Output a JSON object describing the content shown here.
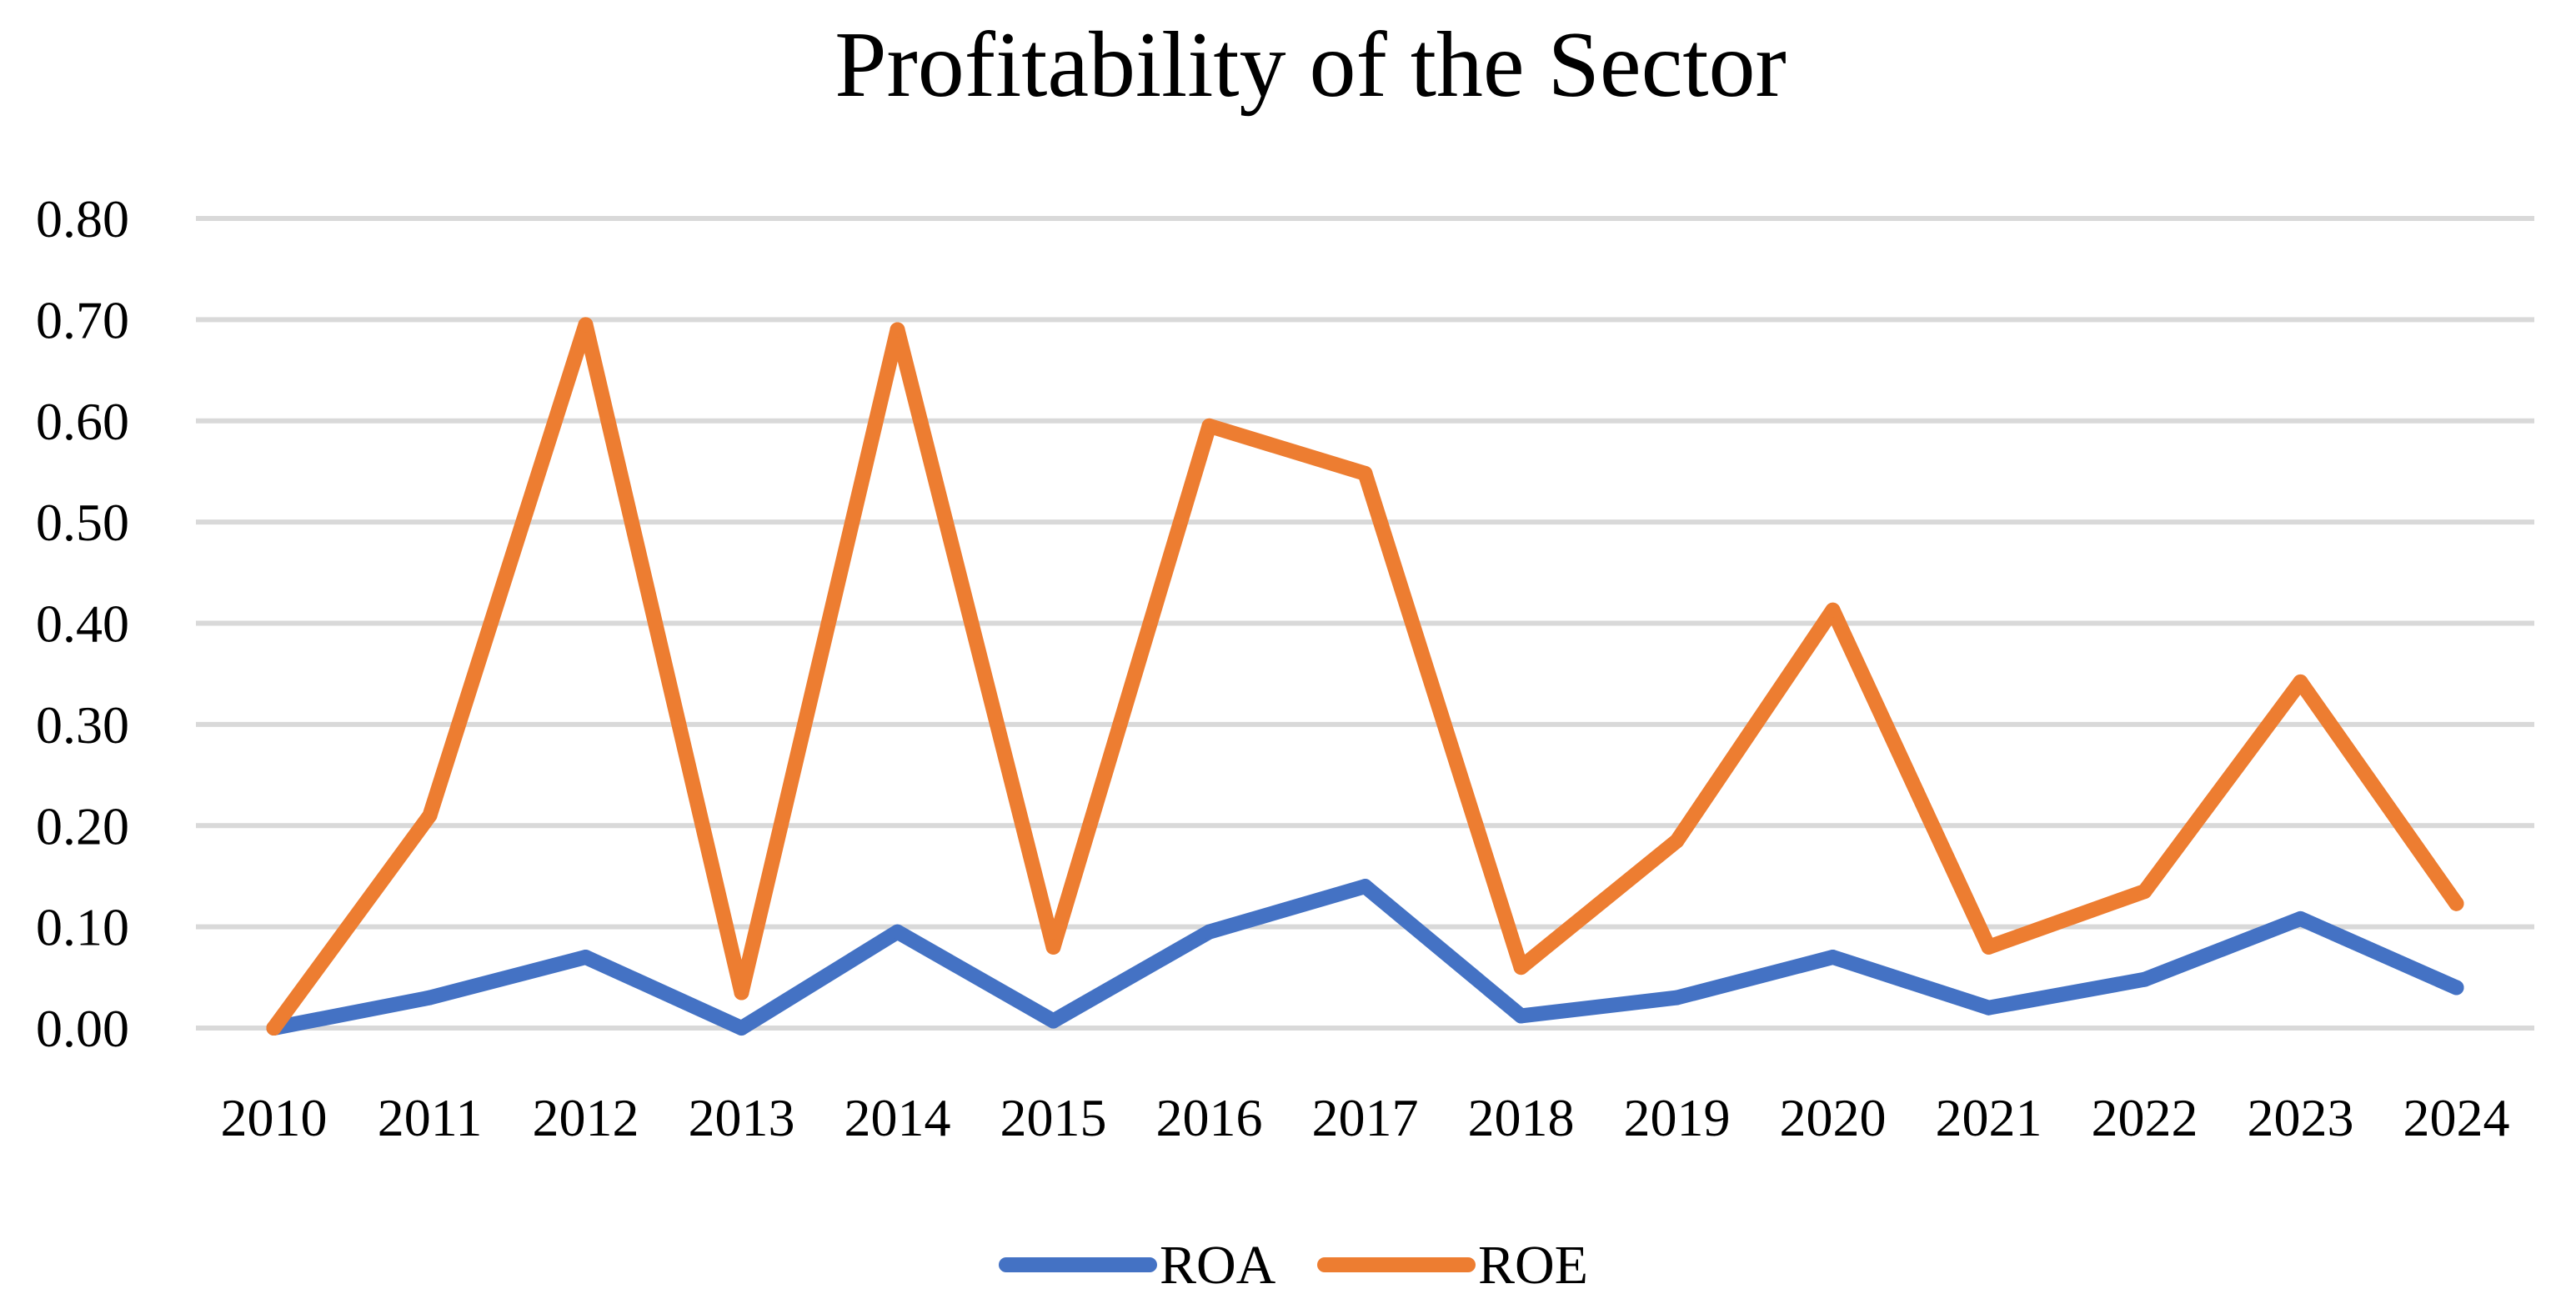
{
  "chart_data": {
    "type": "line",
    "title": "Profitability of the Sector",
    "xlabel": "",
    "ylabel": "",
    "categories": [
      "2010",
      "2011",
      "2012",
      "2013",
      "2014",
      "2015",
      "2016",
      "2017",
      "2018",
      "2019",
      "2020",
      "2021",
      "2022",
      "2023",
      "2024"
    ],
    "yticks": [
      "0.00",
      "0.10",
      "0.20",
      "0.30",
      "0.40",
      "0.50",
      "0.60",
      "0.70",
      "0.80"
    ],
    "ylim": [
      0,
      0.8
    ],
    "grid": true,
    "legend_position": "bottom",
    "series": [
      {
        "name": "ROA",
        "color": "#4472c4",
        "values": [
          0.0,
          0.03,
          0.07,
          0.0,
          0.095,
          0.007,
          0.095,
          0.14,
          0.012,
          0.03,
          0.07,
          0.02,
          0.048,
          0.108,
          0.04
        ]
      },
      {
        "name": "ROE",
        "color": "#ed7d31",
        "values": [
          0.0,
          0.21,
          0.695,
          0.035,
          0.69,
          0.08,
          0.595,
          0.548,
          0.06,
          0.185,
          0.413,
          0.08,
          0.135,
          0.342,
          0.123
        ]
      }
    ]
  }
}
